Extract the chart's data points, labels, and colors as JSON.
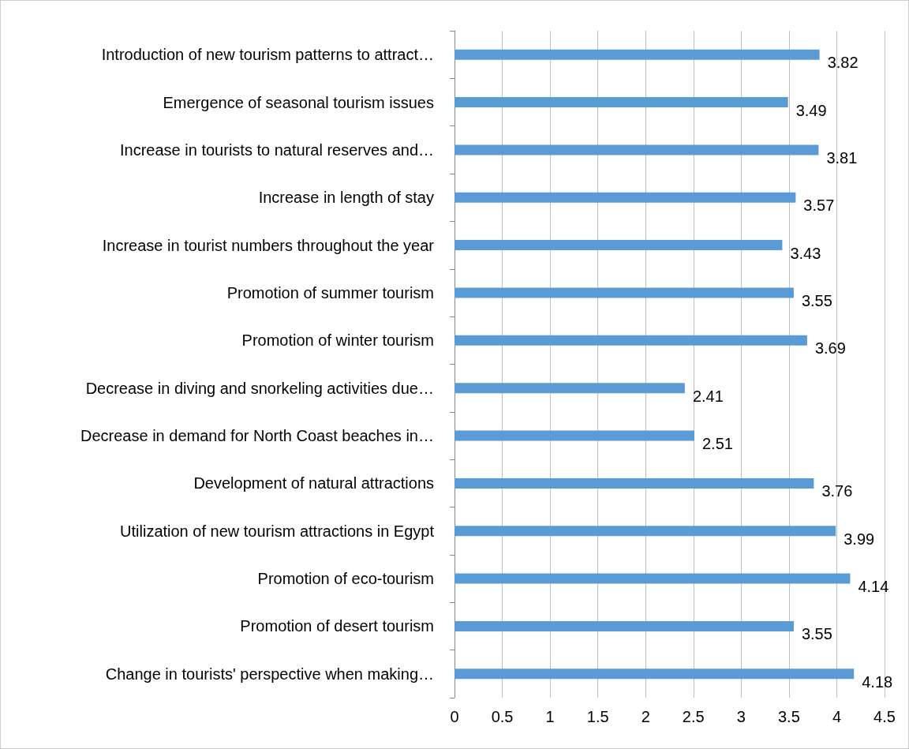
{
  "chart_data": {
    "type": "bar",
    "orientation": "horizontal",
    "categories": [
      "Introduction of new tourism patterns to attract…",
      "Emergence of seasonal tourism issues",
      "Increase in tourists to natural reserves and…",
      "Increase in length of stay",
      "Increase in tourist numbers throughout the year",
      "Promotion of summer tourism",
      "Promotion of winter tourism",
      "Decrease in diving and snorkeling activities due…",
      "Decrease in demand for North Coast beaches in…",
      "Development of natural attractions",
      "Utilization of new tourism attractions in Egypt",
      "Promotion of eco-tourism",
      "Promotion of desert tourism",
      "Change in tourists' perspective when making…"
    ],
    "values": [
      3.82,
      3.49,
      3.81,
      3.57,
      3.43,
      3.55,
      3.69,
      2.41,
      2.51,
      3.76,
      3.99,
      4.14,
      3.55,
      4.18
    ],
    "color": "#5b9bd5",
    "xlim": [
      0,
      4.5
    ],
    "xticks": [
      0,
      0.5,
      1,
      1.5,
      2,
      2.5,
      3,
      3.5,
      4,
      4.5
    ],
    "grid": "x",
    "data_labels": true
  }
}
